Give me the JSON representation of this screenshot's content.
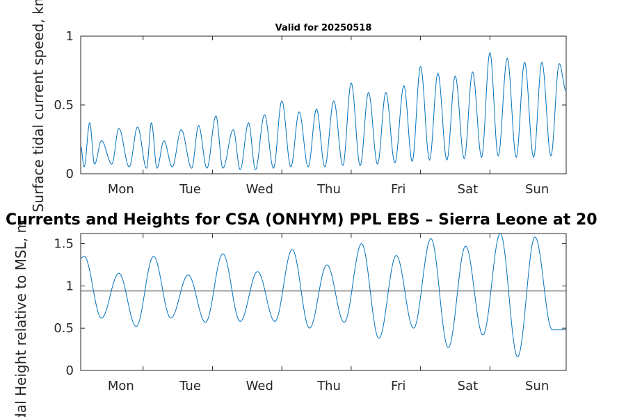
{
  "figure": {
    "main_title": "Currents and Heights for CSA (ONHYM) PPL EBS  – Sierra Leone at 20",
    "line_color": "#0072BD"
  },
  "chart_data": [
    {
      "type": "line",
      "title": "Valid for 20250518",
      "ylabel": "Surface tidal current speed, kn",
      "xlabel": "",
      "x_tick_labels": [
        "Mon",
        "Tue",
        "Wed",
        "Thu",
        "Fri",
        "Sat",
        "Sun"
      ],
      "y_ticks": [
        0,
        0.5,
        1
      ],
      "y_tick_labels": [
        "0",
        "0.5",
        "1"
      ],
      "ylim": [
        0,
        1
      ],
      "xlim_days": [
        0,
        7
      ],
      "grid": false,
      "series": [
        {
          "x_days": [
            0,
            0.05,
            0.13,
            0.2,
            0.3,
            0.45,
            0.55,
            0.7,
            0.82,
            0.95,
            1.02,
            1.1,
            1.2,
            1.32,
            1.45,
            1.6,
            1.7,
            1.82,
            1.95,
            2.05,
            2.2,
            2.3,
            2.42,
            2.52,
            2.65,
            2.78,
            2.9,
            3.03,
            3.15,
            3.28,
            3.4,
            3.52,
            3.65,
            3.78,
            3.9,
            4.03,
            4.15,
            4.28,
            4.4,
            4.53,
            4.66,
            4.78,
            4.9,
            5.03,
            5.15,
            5.28,
            5.4,
            5.53,
            5.65,
            5.78,
            5.9,
            6.02,
            6.15,
            6.28,
            6.4,
            6.53,
            6.65,
            6.78,
            6.9,
            7.0
          ],
          "values": [
            0.2,
            0.05,
            0.37,
            0.07,
            0.24,
            0.07,
            0.33,
            0.05,
            0.34,
            0.04,
            0.37,
            0.04,
            0.24,
            0.05,
            0.32,
            0.04,
            0.35,
            0.04,
            0.42,
            0.04,
            0.32,
            0.03,
            0.37,
            0.03,
            0.43,
            0.04,
            0.53,
            0.05,
            0.45,
            0.05,
            0.47,
            0.05,
            0.53,
            0.06,
            0.66,
            0.06,
            0.59,
            0.07,
            0.59,
            0.08,
            0.64,
            0.09,
            0.78,
            0.1,
            0.73,
            0.1,
            0.71,
            0.11,
            0.74,
            0.12,
            0.88,
            0.13,
            0.84,
            0.12,
            0.81,
            0.12,
            0.81,
            0.13,
            0.8,
            0.6
          ]
        }
      ]
    },
    {
      "type": "line",
      "title": "",
      "ylabel": "Tidal Height relative to MSL, m",
      "xlabel": "",
      "x_tick_labels": [
        "Mon",
        "Tue",
        "Wed",
        "Thu",
        "Fri",
        "Sat",
        "Sun"
      ],
      "y_ticks": [
        0,
        0.5,
        1,
        1.5
      ],
      "y_tick_labels": [
        "0",
        "0.5",
        "1",
        "1.5"
      ],
      "ylim": [
        0,
        1.62
      ],
      "xlim_days": [
        0,
        7
      ],
      "grid": false,
      "reference_line": {
        "value": 0.94,
        "color": "#555555"
      },
      "series": [
        {
          "extrema_days": [
            0.05,
            0.3,
            0.55,
            0.8,
            1.05,
            1.3,
            1.55,
            1.8,
            2.05,
            2.3,
            2.55,
            2.8,
            3.05,
            3.3,
            3.55,
            3.8,
            4.05,
            4.3,
            4.55,
            4.8,
            5.05,
            5.3,
            5.55,
            5.8,
            6.05,
            6.3,
            6.55,
            6.8
          ],
          "extrema_values": [
            1.35,
            0.62,
            1.15,
            0.52,
            1.35,
            0.62,
            1.13,
            0.57,
            1.38,
            0.58,
            1.17,
            0.58,
            1.43,
            0.5,
            1.25,
            0.57,
            1.5,
            0.38,
            1.36,
            0.5,
            1.56,
            0.27,
            1.47,
            0.42,
            1.62,
            0.16,
            1.58,
            0.48
          ]
        }
      ]
    }
  ]
}
